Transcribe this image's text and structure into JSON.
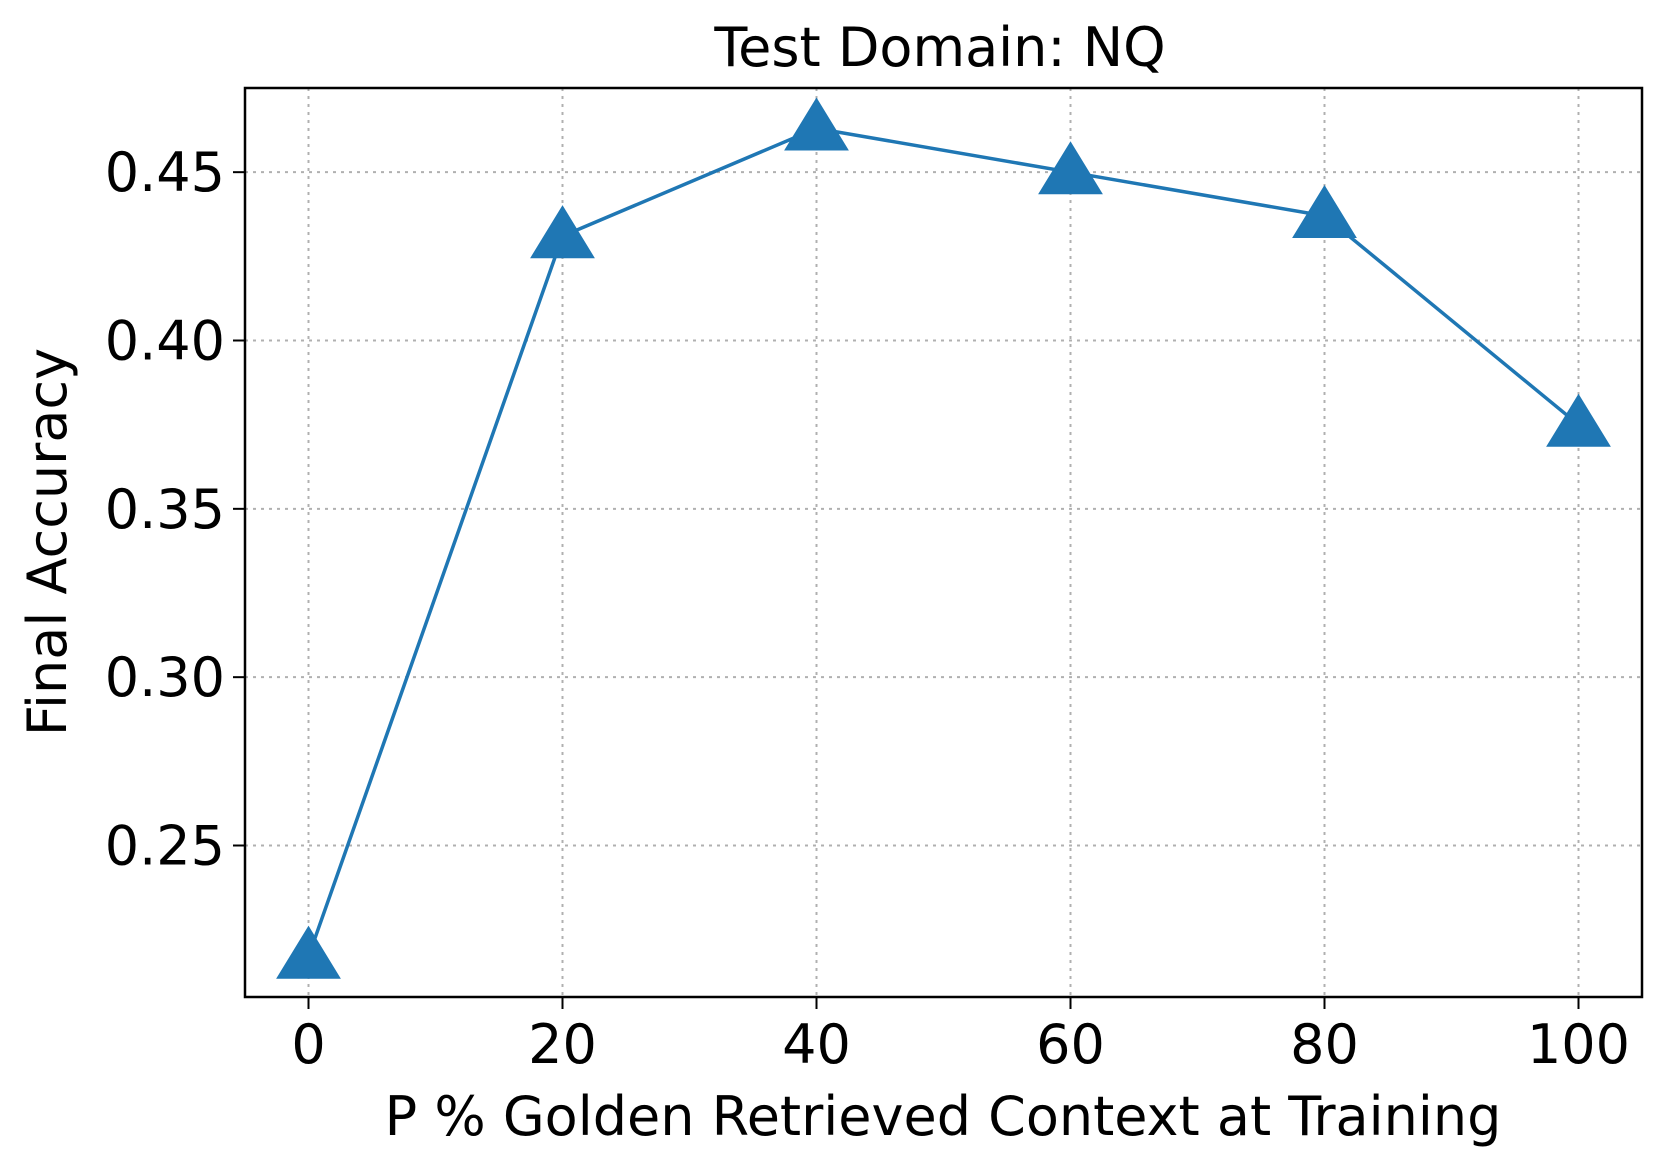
{
  "chart_data": {
    "type": "line",
    "title": "Test Domain: NQ",
    "xlabel": "P % Golden Retrieved Context at Training",
    "ylabel": "Final Accuracy",
    "x": [
      0,
      20,
      40,
      60,
      80,
      100
    ],
    "series": [
      {
        "name": "Final Accuracy",
        "values": [
          0.217,
          0.431,
          0.463,
          0.45,
          0.437,
          0.375
        ],
        "color": "#1f77b4",
        "marker": "triangle-up"
      }
    ],
    "xlim": [
      -5,
      105
    ],
    "ylim": [
      0.205,
      0.475
    ],
    "xticks": [
      0,
      20,
      40,
      60,
      80,
      100
    ],
    "xtick_labels": [
      "0",
      "20",
      "40",
      "60",
      "80",
      "100"
    ],
    "yticks": [
      0.25,
      0.3,
      0.35,
      0.4,
      0.45
    ],
    "ytick_labels": [
      "0.25",
      "0.30",
      "0.35",
      "0.40",
      "0.45"
    ],
    "grid": true
  }
}
